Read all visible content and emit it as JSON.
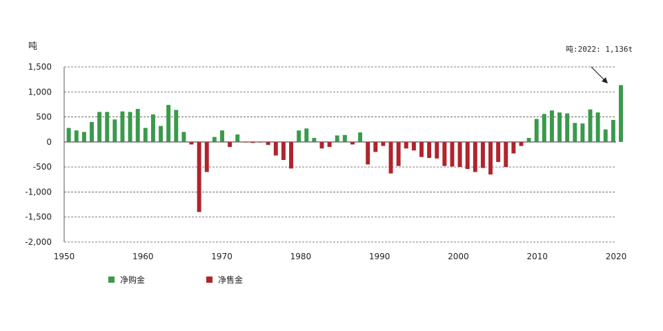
{
  "chart_data": {
    "type": "bar",
    "ylabel": "吨",
    "ylim": [
      -2000,
      1500
    ],
    "yticks": [
      "1,500",
      "1,000",
      "500",
      "0",
      "-500",
      "-1,000",
      "-1,500",
      "-2,000"
    ],
    "xticks": [
      "1950",
      "1960",
      "1970",
      "1980",
      "1990",
      "2000",
      "2010",
      "2020"
    ],
    "grid": "dashed horizontal",
    "legend_position": "bottom-left",
    "annotation": "吨:2022: 1,136t",
    "colors": {
      "net_purchase": "#3a9a4c",
      "net_sale": "#b0242c"
    },
    "series": [
      {
        "name": "净购金",
        "color": "#3a9a4c"
      },
      {
        "name": "净售金",
        "color": "#b0242c"
      }
    ],
    "years": [
      1950,
      1951,
      1952,
      1953,
      1954,
      1955,
      1956,
      1957,
      1958,
      1959,
      1960,
      1961,
      1962,
      1963,
      1964,
      1965,
      1966,
      1967,
      1968,
      1969,
      1970,
      1971,
      1972,
      1973,
      1974,
      1975,
      1976,
      1977,
      1978,
      1979,
      1980,
      1981,
      1982,
      1983,
      1984,
      1985,
      1986,
      1987,
      1988,
      1989,
      1990,
      1991,
      1992,
      1993,
      1994,
      1995,
      1996,
      1997,
      1998,
      1999,
      2000,
      2001,
      2002,
      2003,
      2004,
      2005,
      2006,
      2007,
      2008,
      2009,
      2010,
      2011,
      2012,
      2013,
      2014,
      2015,
      2016,
      2017,
      2018,
      2019,
      2020,
      2021,
      2022
    ],
    "values": [
      280,
      230,
      200,
      400,
      600,
      600,
      450,
      610,
      600,
      660,
      280,
      550,
      320,
      740,
      640,
      200,
      -50,
      -1400,
      -600,
      100,
      230,
      -100,
      150,
      -10,
      -20,
      -10,
      -60,
      -270,
      -360,
      -530,
      230,
      270,
      80,
      -130,
      -100,
      130,
      140,
      -50,
      190,
      -450,
      -200,
      -80,
      -630,
      -480,
      -130,
      -170,
      -300,
      -320,
      -330,
      -480,
      -490,
      -500,
      -540,
      -600,
      -520,
      -650,
      -400,
      -500,
      -230,
      -80,
      80,
      460,
      560,
      630,
      590,
      570,
      380,
      370,
      650,
      590,
      250,
      440,
      1136
    ]
  }
}
